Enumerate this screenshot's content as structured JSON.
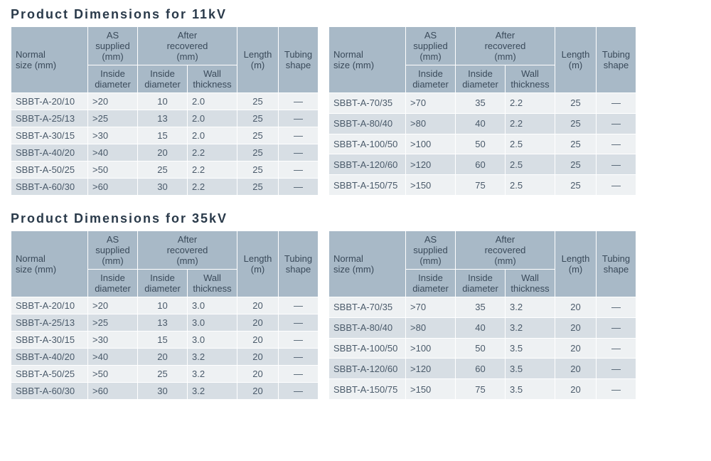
{
  "colors": {
    "header_bg": "#a8b9c7",
    "row_odd": "#eef1f3",
    "row_even": "#d7dee4",
    "text": "#4a5a6a",
    "title": "#2a3a4a"
  },
  "columns": {
    "normal_size": "Normal\nsize (mm)",
    "as_supplied": "AS\nsupplied\n(mm)",
    "after_recovered": "After\nrecovered\n(mm)",
    "inside_diameter": "Inside\ndiameter",
    "wall_thickness": "Wall\nthickness",
    "length": "Length\n(m)",
    "tubing_shape": "Tubing\nshape"
  },
  "sections": [
    {
      "title": "Product Dimensions for 11kV",
      "title_fontsize": "18px",
      "left_rows": [
        [
          "SBBT-A-20/10",
          ">20",
          "10",
          "2.0",
          "25",
          "—"
        ],
        [
          "SBBT-A-25/13",
          ">25",
          "13",
          "2.0",
          "25",
          "—"
        ],
        [
          "SBBT-A-30/15",
          ">30",
          "15",
          "2.0",
          "25",
          "—"
        ],
        [
          "SBBT-A-40/20",
          ">40",
          "20",
          "2.2",
          "25",
          "—"
        ],
        [
          "SBBT-A-50/25",
          ">50",
          "25",
          "2.2",
          "25",
          "—"
        ],
        [
          "SBBT-A-60/30",
          ">60",
          "30",
          "2.2",
          "25",
          "—"
        ]
      ],
      "right_rows": [
        [
          "SBBT-A-70/35",
          ">70",
          "35",
          "2.2",
          "25",
          "—"
        ],
        [
          "SBBT-A-80/40",
          ">80",
          "40",
          "2.2",
          "25",
          "—"
        ],
        [
          "SBBT-A-100/50",
          ">100",
          "50",
          "2.5",
          "25",
          "—"
        ],
        [
          "SBBT-A-120/60",
          ">120",
          "60",
          "2.5",
          "25",
          "—"
        ],
        [
          "SBBT-A-150/75",
          ">150",
          "75",
          "2.5",
          "25",
          "—"
        ]
      ]
    },
    {
      "title": "Product Dimensions for 35kV",
      "title_fontsize": "18px",
      "left_rows": [
        [
          "SBBT-A-20/10",
          ">20",
          "10",
          "3.0",
          "20",
          "—"
        ],
        [
          "SBBT-A-25/13",
          ">25",
          "13",
          "3.0",
          "20",
          "—"
        ],
        [
          "SBBT-A-30/15",
          ">30",
          "15",
          "3.0",
          "20",
          "—"
        ],
        [
          "SBBT-A-40/20",
          ">40",
          "20",
          "3.2",
          "20",
          "—"
        ],
        [
          "SBBT-A-50/25",
          ">50",
          "25",
          "3.2",
          "20",
          "—"
        ],
        [
          "SBBT-A-60/30",
          ">60",
          "30",
          "3.2",
          "20",
          "—"
        ]
      ],
      "right_rows": [
        [
          "SBBT-A-70/35",
          ">70",
          "35",
          "3.2",
          "20",
          "—"
        ],
        [
          "SBBT-A-80/40",
          ">80",
          "40",
          "3.2",
          "20",
          "—"
        ],
        [
          "SBBT-A-100/50",
          ">100",
          "50",
          "3.5",
          "20",
          "—"
        ],
        [
          "SBBT-A-120/60",
          ">120",
          "60",
          "3.5",
          "20",
          "—"
        ],
        [
          "SBBT-A-150/75",
          ">150",
          "75",
          "3.5",
          "20",
          "—"
        ]
      ]
    }
  ]
}
